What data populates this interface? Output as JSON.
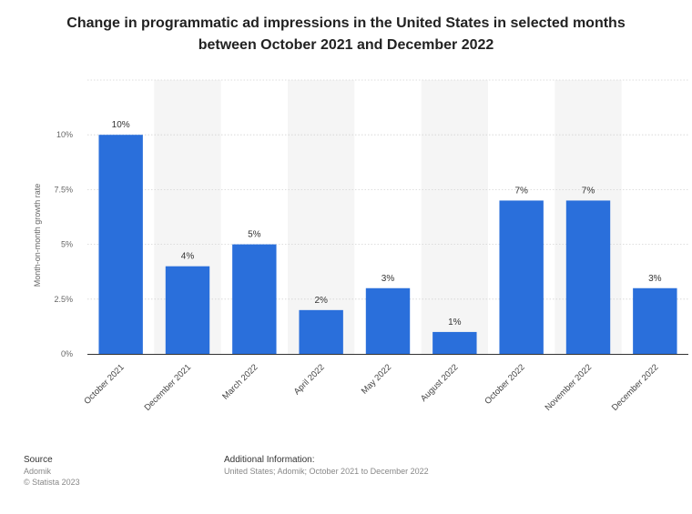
{
  "chart_data": {
    "type": "bar",
    "title": "Change in programmatic ad impressions in the United States in selected months between October 2021 and December 2022",
    "xlabel": "",
    "ylabel": "Month-on-month growth rate",
    "categories": [
      "October 2021",
      "December 2021",
      "March 2022",
      "April 2022",
      "May 2022",
      "August 2022",
      "October 2022",
      "November 2022",
      "December 2022"
    ],
    "values": [
      10,
      4,
      5,
      2,
      3,
      1,
      7,
      7,
      3
    ],
    "value_labels": [
      "10%",
      "4%",
      "5%",
      "2%",
      "3%",
      "1%",
      "7%",
      "7%",
      "3%"
    ],
    "ylim": [
      0,
      12.5
    ],
    "yticks": [
      0,
      2.5,
      5,
      7.5,
      10
    ],
    "ytick_labels": [
      "0%",
      "2.5%",
      "5%",
      "7.5%",
      "10%"
    ],
    "grid": true,
    "legend": "none",
    "colors": {
      "bar": "#2a6fdb",
      "band": "#f5f5f5",
      "grid": "#d4d4d4",
      "axis": "#333333"
    }
  },
  "footer": {
    "source_heading": "Source",
    "source_name": "Adomik",
    "copyright": "© Statista 2023",
    "info_heading": "Additional Information:",
    "info_text": "United States; Adomik; October 2021 to December 2022"
  }
}
